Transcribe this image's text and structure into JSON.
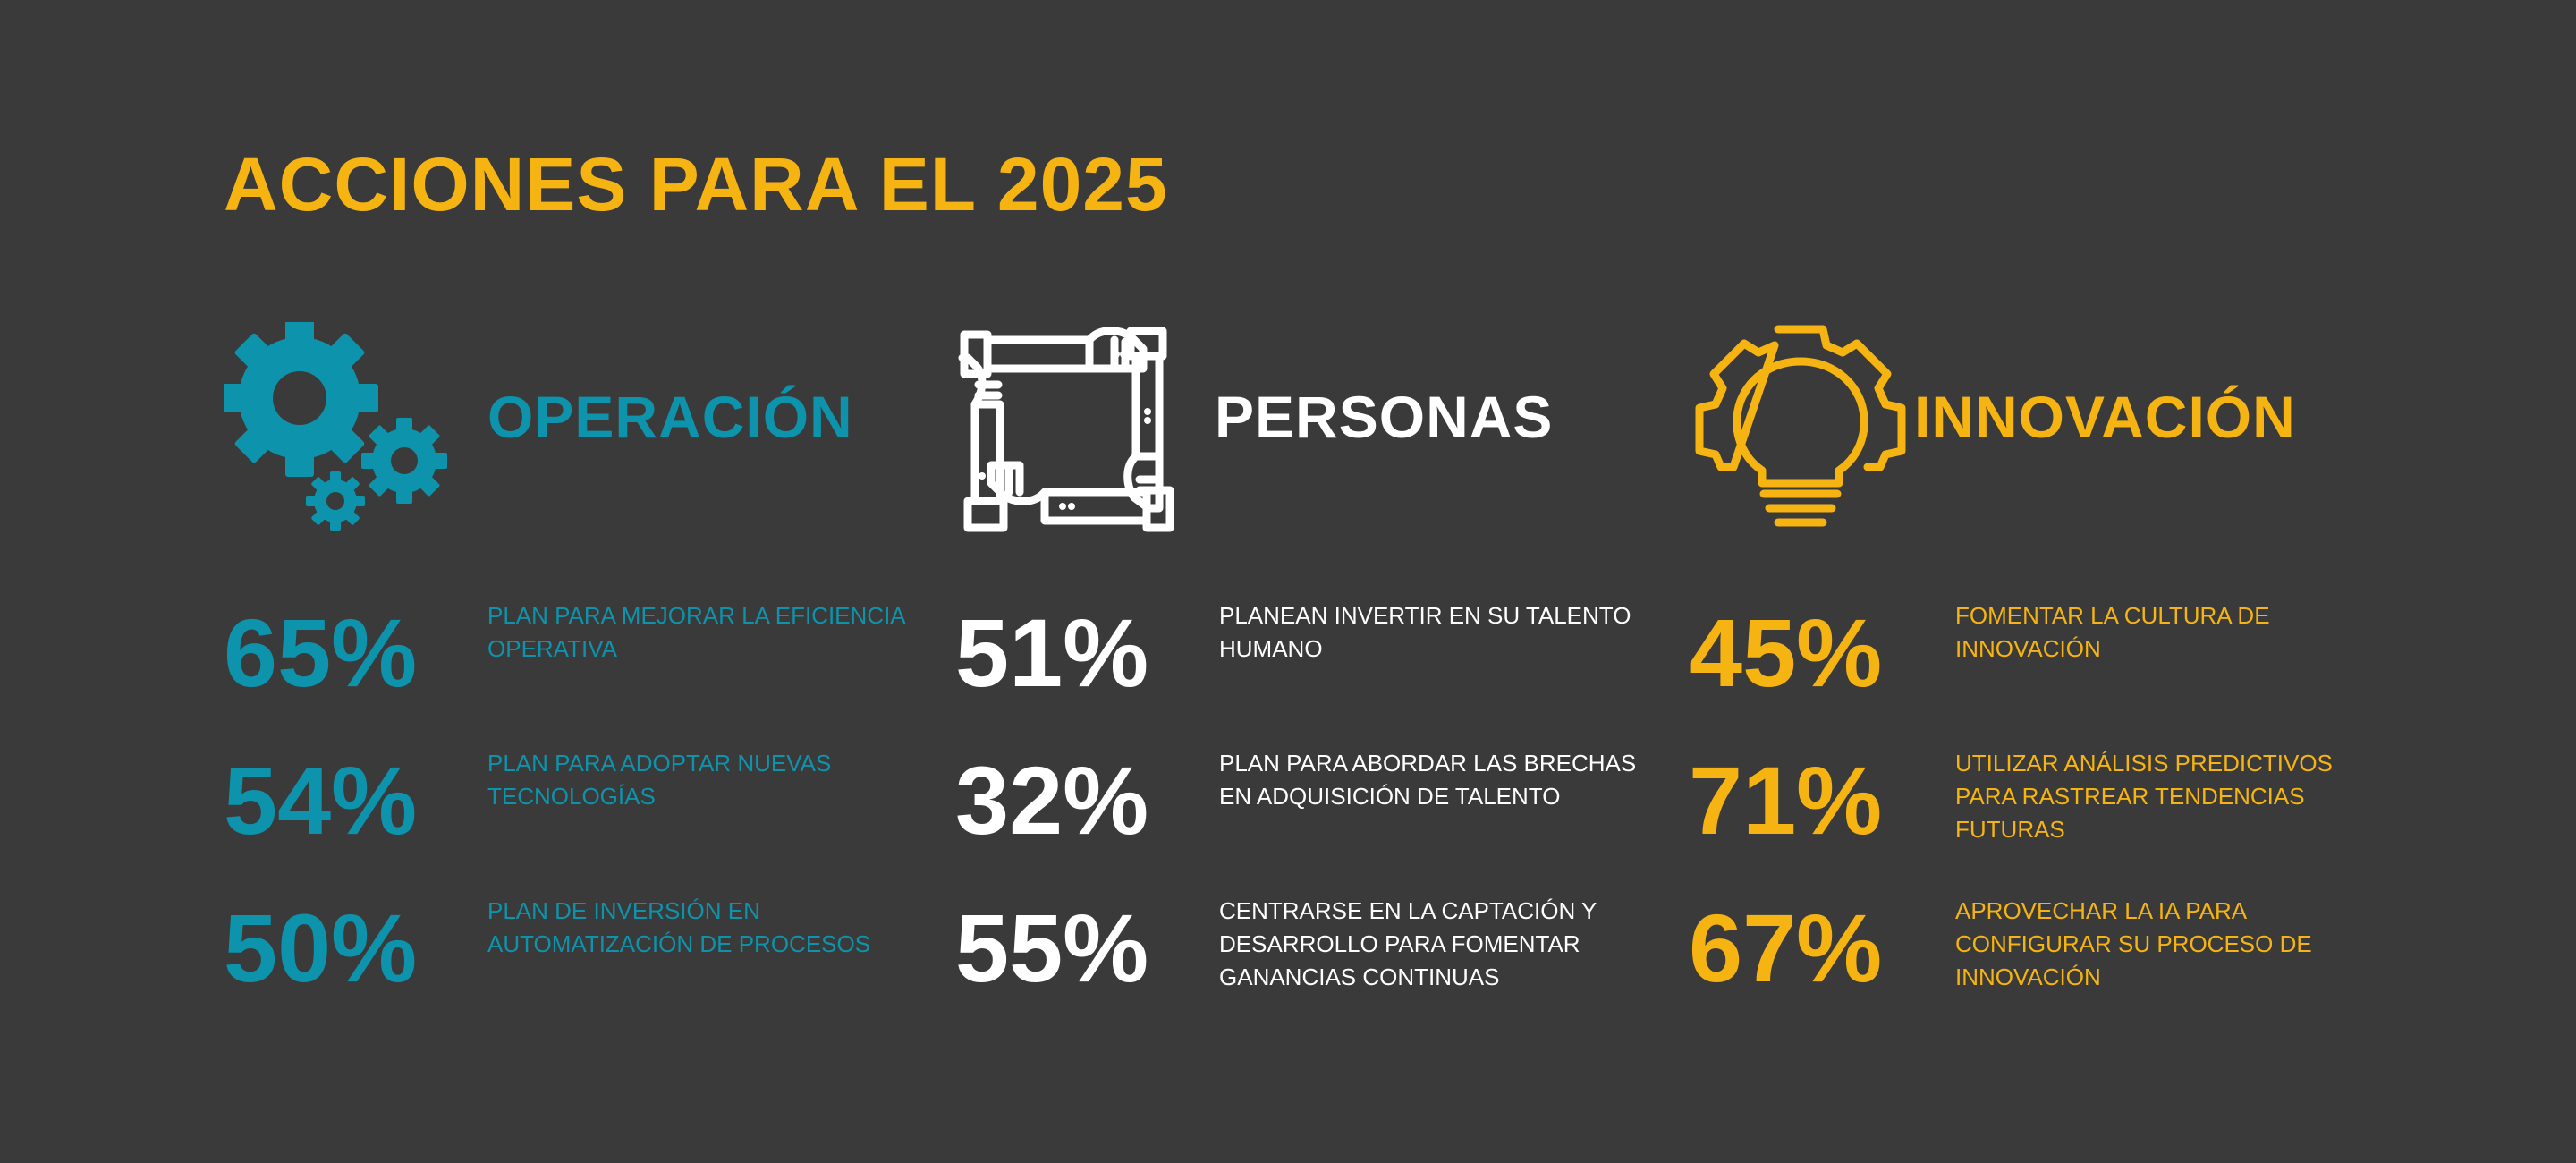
{
  "title": "ACCIONES PARA EL 2025",
  "colors": {
    "background": "#3a3a3a",
    "teal": "#0d93ab",
    "white": "#ffffff",
    "yellow": "#f6b412"
  },
  "columns": [
    {
      "heading": "OPERACIÓN",
      "icon": "gears-icon",
      "stats": [
        {
          "value": "65%",
          "text": "PLAN PARA MEJORAR LA EFICIENCIA OPERATIVA"
        },
        {
          "value": "54%",
          "text": "PLAN PARA ADOPTAR NUEVAS TECNOLOGÍAS"
        },
        {
          "value": "50%",
          "text": "PLAN DE INVERSIÓN EN AUTOMATIZACIÓN DE PROCESOS"
        }
      ]
    },
    {
      "heading": "PERSONAS",
      "icon": "teamwork-hands-icon",
      "stats": [
        {
          "value": "51%",
          "text": "PLANEAN INVERTIR EN SU TALENTO HUMANO"
        },
        {
          "value": "32%",
          "text": "PLAN PARA ABORDAR LAS BRECHAS EN ADQUISICIÓN DE TALENTO"
        },
        {
          "value": "55%",
          "text": "CENTRARSE EN LA CAPTACIÓN Y DESARROLLO PARA FOMENTAR GANANCIAS CONTINUAS"
        }
      ]
    },
    {
      "heading": "INNOVACIÓN",
      "icon": "lightbulb-gear-icon",
      "stats": [
        {
          "value": "45%",
          "text": "FOMENTAR LA CULTURA DE INNOVACIÓN"
        },
        {
          "value": "71%",
          "text": "UTILIZAR ANÁLISIS PREDICTIVOS PARA RASTREAR TENDENCIAS FUTURAS"
        },
        {
          "value": "67%",
          "text": "APROVECHAR LA IA PARA CONFIGURAR SU PROCESO DE INNOVACIÓN"
        }
      ]
    }
  ]
}
